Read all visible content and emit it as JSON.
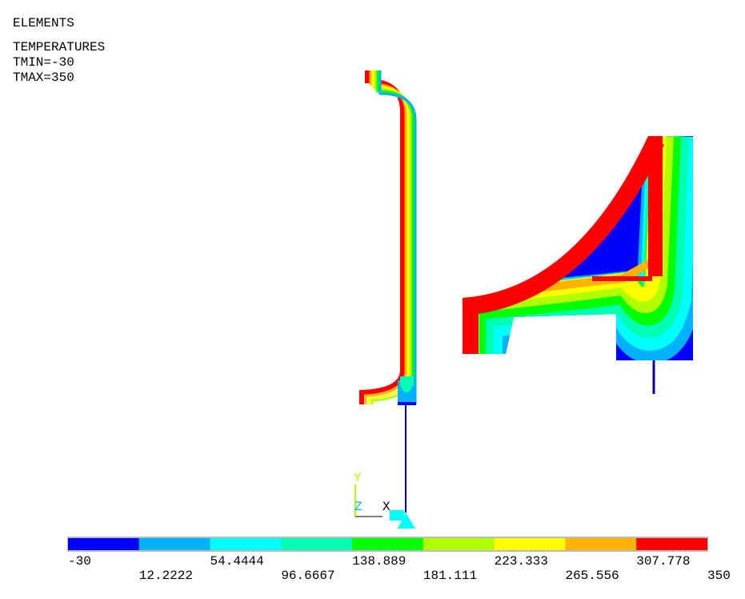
{
  "header": {
    "mode": "ELEMENTS",
    "quantity": "TEMPERATURES",
    "tmin": "TMIN=-30",
    "tmax": "TMAX=350"
  },
  "triad": {
    "y": "Y",
    "z": "Z",
    "x": "X"
  },
  "legend": {
    "colors": [
      "#0000ff",
      "#00b2ff",
      "#00ffff",
      "#00ffb2",
      "#00ff00",
      "#b2ff00",
      "#ffff00",
      "#ffb200",
      "#ff0000"
    ],
    "labels": [
      "-30",
      "12.2222",
      "54.4444",
      "96.6667",
      "138.889",
      "181.111",
      "223.333",
      "265.556",
      "307.778",
      "350"
    ]
  }
}
